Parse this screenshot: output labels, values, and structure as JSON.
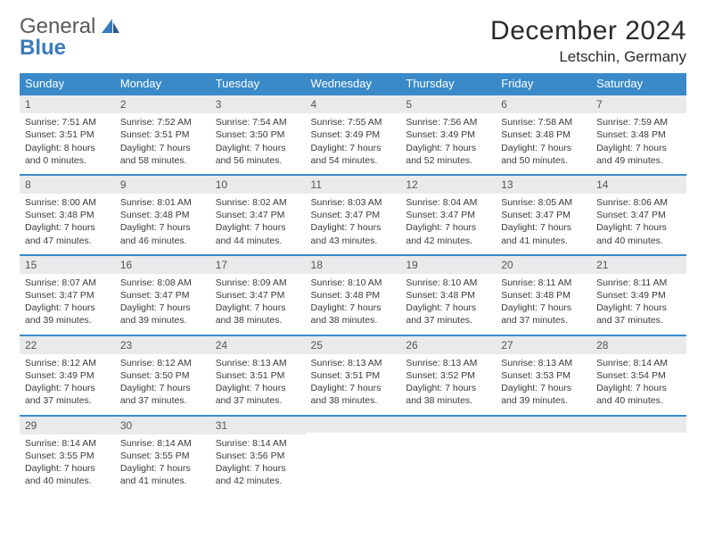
{
  "logo": {
    "general": "General",
    "blue": "Blue"
  },
  "title": "December 2024",
  "location": "Letschin, Germany",
  "colors": {
    "header_bg": "#3a8ac9",
    "header_text": "#ffffff",
    "band_bg": "#e9eaeb",
    "band_border": "#3a8ac9",
    "logo_blue": "#3a7bbf",
    "logo_gray": "#5a5a5a",
    "text": "#2a2a2a"
  },
  "day_headers": [
    "Sunday",
    "Monday",
    "Tuesday",
    "Wednesday",
    "Thursday",
    "Friday",
    "Saturday"
  ],
  "weeks": [
    [
      {
        "n": "1",
        "sr": "Sunrise: 7:51 AM",
        "ss": "Sunset: 3:51 PM",
        "dl1": "Daylight: 8 hours",
        "dl2": "and 0 minutes."
      },
      {
        "n": "2",
        "sr": "Sunrise: 7:52 AM",
        "ss": "Sunset: 3:51 PM",
        "dl1": "Daylight: 7 hours",
        "dl2": "and 58 minutes."
      },
      {
        "n": "3",
        "sr": "Sunrise: 7:54 AM",
        "ss": "Sunset: 3:50 PM",
        "dl1": "Daylight: 7 hours",
        "dl2": "and 56 minutes."
      },
      {
        "n": "4",
        "sr": "Sunrise: 7:55 AM",
        "ss": "Sunset: 3:49 PM",
        "dl1": "Daylight: 7 hours",
        "dl2": "and 54 minutes."
      },
      {
        "n": "5",
        "sr": "Sunrise: 7:56 AM",
        "ss": "Sunset: 3:49 PM",
        "dl1": "Daylight: 7 hours",
        "dl2": "and 52 minutes."
      },
      {
        "n": "6",
        "sr": "Sunrise: 7:58 AM",
        "ss": "Sunset: 3:48 PM",
        "dl1": "Daylight: 7 hours",
        "dl2": "and 50 minutes."
      },
      {
        "n": "7",
        "sr": "Sunrise: 7:59 AM",
        "ss": "Sunset: 3:48 PM",
        "dl1": "Daylight: 7 hours",
        "dl2": "and 49 minutes."
      }
    ],
    [
      {
        "n": "8",
        "sr": "Sunrise: 8:00 AM",
        "ss": "Sunset: 3:48 PM",
        "dl1": "Daylight: 7 hours",
        "dl2": "and 47 minutes."
      },
      {
        "n": "9",
        "sr": "Sunrise: 8:01 AM",
        "ss": "Sunset: 3:48 PM",
        "dl1": "Daylight: 7 hours",
        "dl2": "and 46 minutes."
      },
      {
        "n": "10",
        "sr": "Sunrise: 8:02 AM",
        "ss": "Sunset: 3:47 PM",
        "dl1": "Daylight: 7 hours",
        "dl2": "and 44 minutes."
      },
      {
        "n": "11",
        "sr": "Sunrise: 8:03 AM",
        "ss": "Sunset: 3:47 PM",
        "dl1": "Daylight: 7 hours",
        "dl2": "and 43 minutes."
      },
      {
        "n": "12",
        "sr": "Sunrise: 8:04 AM",
        "ss": "Sunset: 3:47 PM",
        "dl1": "Daylight: 7 hours",
        "dl2": "and 42 minutes."
      },
      {
        "n": "13",
        "sr": "Sunrise: 8:05 AM",
        "ss": "Sunset: 3:47 PM",
        "dl1": "Daylight: 7 hours",
        "dl2": "and 41 minutes."
      },
      {
        "n": "14",
        "sr": "Sunrise: 8:06 AM",
        "ss": "Sunset: 3:47 PM",
        "dl1": "Daylight: 7 hours",
        "dl2": "and 40 minutes."
      }
    ],
    [
      {
        "n": "15",
        "sr": "Sunrise: 8:07 AM",
        "ss": "Sunset: 3:47 PM",
        "dl1": "Daylight: 7 hours",
        "dl2": "and 39 minutes."
      },
      {
        "n": "16",
        "sr": "Sunrise: 8:08 AM",
        "ss": "Sunset: 3:47 PM",
        "dl1": "Daylight: 7 hours",
        "dl2": "and 39 minutes."
      },
      {
        "n": "17",
        "sr": "Sunrise: 8:09 AM",
        "ss": "Sunset: 3:47 PM",
        "dl1": "Daylight: 7 hours",
        "dl2": "and 38 minutes."
      },
      {
        "n": "18",
        "sr": "Sunrise: 8:10 AM",
        "ss": "Sunset: 3:48 PM",
        "dl1": "Daylight: 7 hours",
        "dl2": "and 38 minutes."
      },
      {
        "n": "19",
        "sr": "Sunrise: 8:10 AM",
        "ss": "Sunset: 3:48 PM",
        "dl1": "Daylight: 7 hours",
        "dl2": "and 37 minutes."
      },
      {
        "n": "20",
        "sr": "Sunrise: 8:11 AM",
        "ss": "Sunset: 3:48 PM",
        "dl1": "Daylight: 7 hours",
        "dl2": "and 37 minutes."
      },
      {
        "n": "21",
        "sr": "Sunrise: 8:11 AM",
        "ss": "Sunset: 3:49 PM",
        "dl1": "Daylight: 7 hours",
        "dl2": "and 37 minutes."
      }
    ],
    [
      {
        "n": "22",
        "sr": "Sunrise: 8:12 AM",
        "ss": "Sunset: 3:49 PM",
        "dl1": "Daylight: 7 hours",
        "dl2": "and 37 minutes."
      },
      {
        "n": "23",
        "sr": "Sunrise: 8:12 AM",
        "ss": "Sunset: 3:50 PM",
        "dl1": "Daylight: 7 hours",
        "dl2": "and 37 minutes."
      },
      {
        "n": "24",
        "sr": "Sunrise: 8:13 AM",
        "ss": "Sunset: 3:51 PM",
        "dl1": "Daylight: 7 hours",
        "dl2": "and 37 minutes."
      },
      {
        "n": "25",
        "sr": "Sunrise: 8:13 AM",
        "ss": "Sunset: 3:51 PM",
        "dl1": "Daylight: 7 hours",
        "dl2": "and 38 minutes."
      },
      {
        "n": "26",
        "sr": "Sunrise: 8:13 AM",
        "ss": "Sunset: 3:52 PM",
        "dl1": "Daylight: 7 hours",
        "dl2": "and 38 minutes."
      },
      {
        "n": "27",
        "sr": "Sunrise: 8:13 AM",
        "ss": "Sunset: 3:53 PM",
        "dl1": "Daylight: 7 hours",
        "dl2": "and 39 minutes."
      },
      {
        "n": "28",
        "sr": "Sunrise: 8:14 AM",
        "ss": "Sunset: 3:54 PM",
        "dl1": "Daylight: 7 hours",
        "dl2": "and 40 minutes."
      }
    ],
    [
      {
        "n": "29",
        "sr": "Sunrise: 8:14 AM",
        "ss": "Sunset: 3:55 PM",
        "dl1": "Daylight: 7 hours",
        "dl2": "and 40 minutes."
      },
      {
        "n": "30",
        "sr": "Sunrise: 8:14 AM",
        "ss": "Sunset: 3:55 PM",
        "dl1": "Daylight: 7 hours",
        "dl2": "and 41 minutes."
      },
      {
        "n": "31",
        "sr": "Sunrise: 8:14 AM",
        "ss": "Sunset: 3:56 PM",
        "dl1": "Daylight: 7 hours",
        "dl2": "and 42 minutes."
      },
      {
        "empty": true
      },
      {
        "empty": true
      },
      {
        "empty": true
      },
      {
        "empty": true
      }
    ]
  ]
}
